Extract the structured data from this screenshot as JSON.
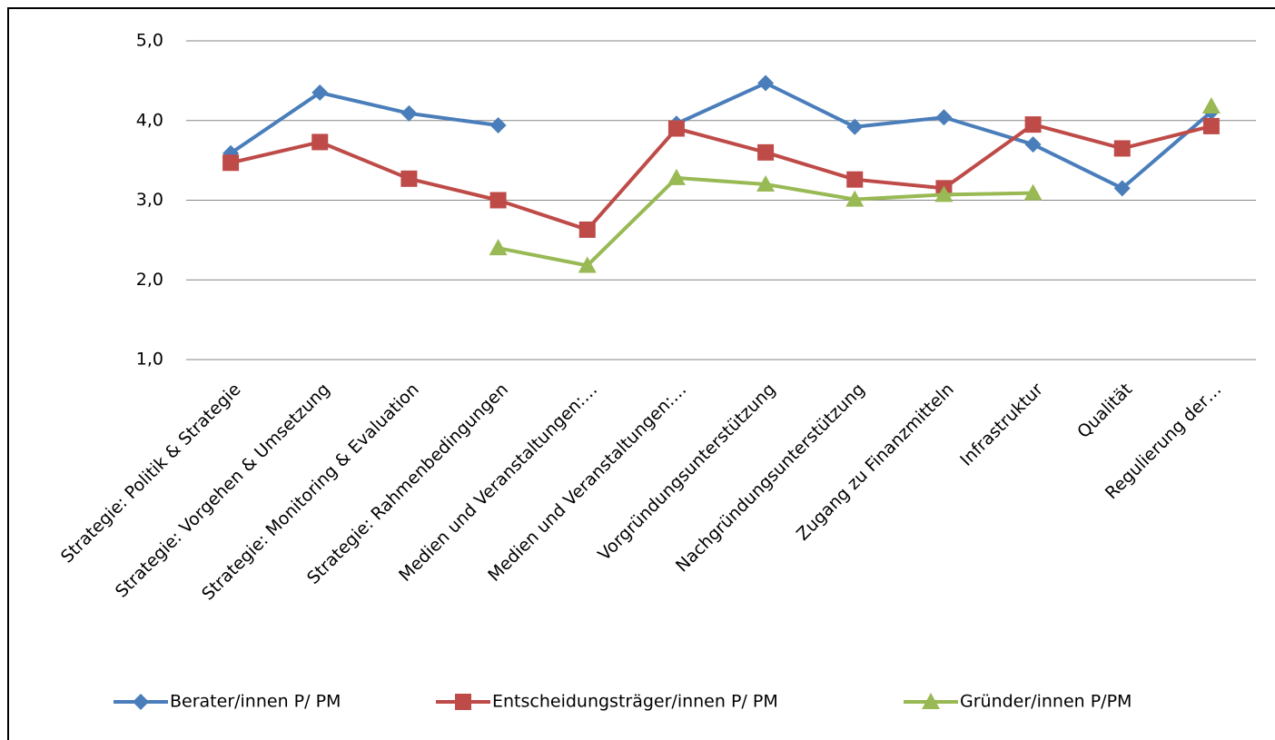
{
  "chart_data": {
    "type": "line",
    "categories": [
      "Strategie: Politik & Strategie",
      "Strategie: Vorgehen & Umsetzung",
      "Strategie: Monitoring & Evaluation",
      "Strategie: Rahmenbedingungen",
      "Medien und Veranstaltungen:…",
      "Medien und Veranstaltungen:…",
      "Vorgründungsunterstützung",
      "Nachgründungsunterstützung",
      "Zugang zu Finanzmitteln",
      "Infrastruktur",
      "Qualität",
      "Regulierung der…"
    ],
    "series": [
      {
        "name": "Berater/innen P/ PM",
        "color": "#4a7ebb",
        "marker": "diamond",
        "values": [
          3.59,
          4.35,
          4.09,
          3.94,
          null,
          3.96,
          4.47,
          3.92,
          4.04,
          3.7,
          3.15,
          4.11
        ]
      },
      {
        "name": "Entscheidungsträger/innen P/ PM",
        "color": "#be4b48",
        "marker": "square",
        "values": [
          3.47,
          3.73,
          3.27,
          3.0,
          2.63,
          3.9,
          3.6,
          3.26,
          3.15,
          3.95,
          3.65,
          3.93
        ]
      },
      {
        "name": "Gründer/innen P/PM",
        "color": "#98b954",
        "marker": "triangle",
        "values": [
          null,
          null,
          null,
          2.4,
          2.18,
          3.28,
          3.2,
          3.01,
          3.07,
          3.09,
          null,
          4.18
        ]
      }
    ],
    "ylim": [
      1,
      5
    ],
    "yticks": [
      {
        "value": 1,
        "label": "1,0"
      },
      {
        "value": 2,
        "label": "2,0"
      },
      {
        "value": 3,
        "label": "3,0"
      },
      {
        "value": 4,
        "label": "4,0"
      },
      {
        "value": 5,
        "label": "5,0"
      }
    ],
    "grid": true,
    "legend": "bottom"
  }
}
